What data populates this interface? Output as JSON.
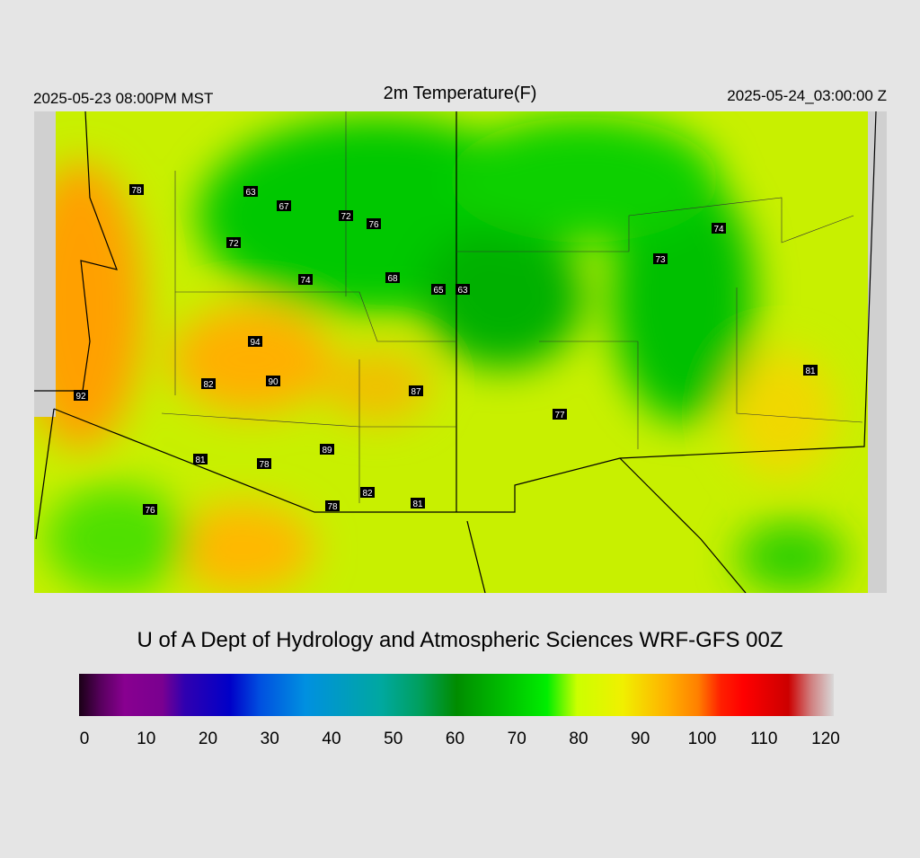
{
  "header": {
    "title": "2m Temperature(F)",
    "local_time": "2025-05-23 08:00PM MST",
    "utc_time": "2025-05-24_03:00:00 Z"
  },
  "stations": [
    78,
    63,
    67,
    72,
    76,
    72,
    74,
    68,
    65,
    63,
    74,
    73,
    94,
    90,
    82,
    92,
    87,
    77,
    81,
    89,
    81,
    78,
    82,
    78,
    81,
    76
  ],
  "credit": "U of A Dept of Hydrology and Atmospheric Sciences WRF-GFS 00Z",
  "colorbar": {
    "ticks": [
      0,
      10,
      20,
      30,
      40,
      50,
      60,
      70,
      80,
      90,
      100,
      110,
      120
    ]
  }
}
